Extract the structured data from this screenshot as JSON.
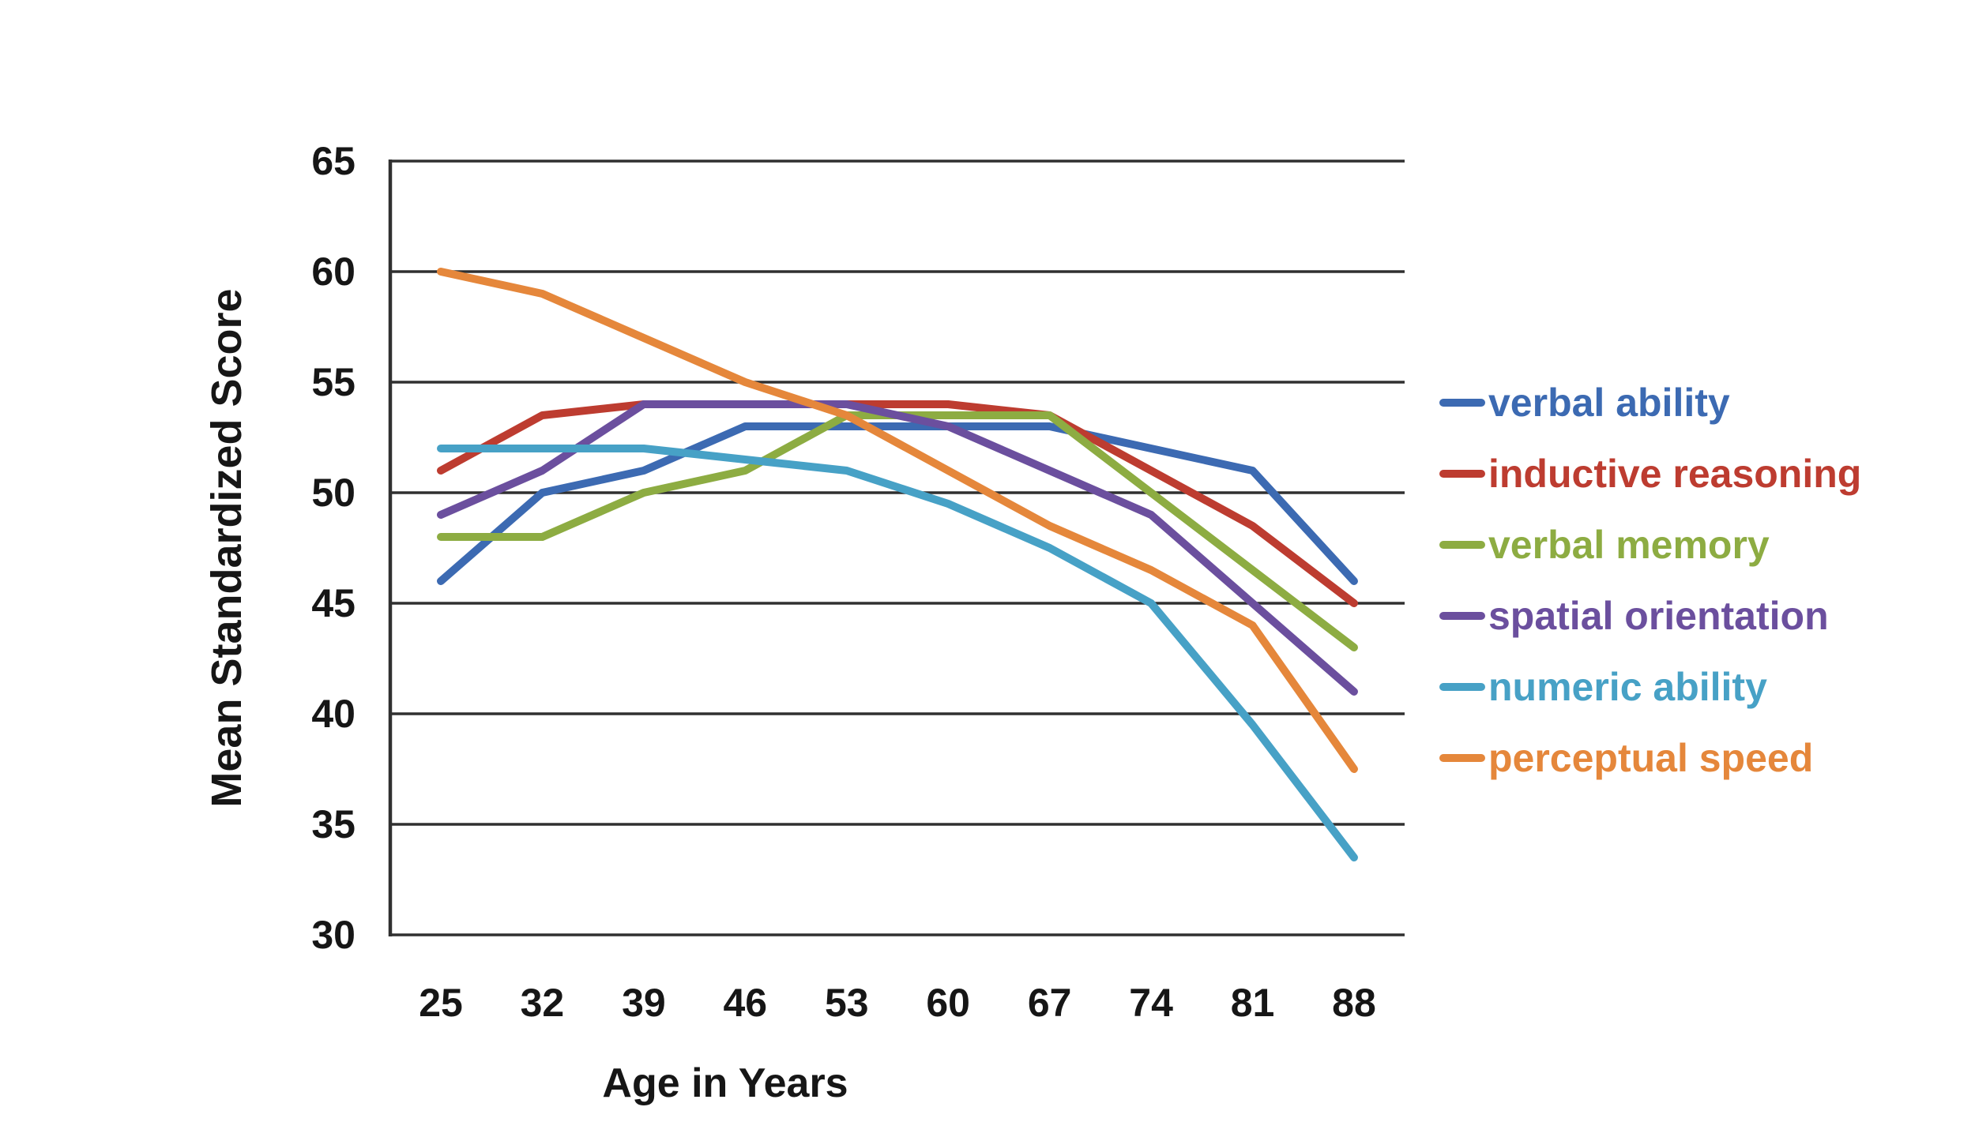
{
  "chart_data": {
    "type": "line",
    "title": "",
    "xlabel": "Age in Years",
    "ylabel": "Mean Standardized Score",
    "x_categories": [
      "25",
      "32",
      "39",
      "46",
      "53",
      "60",
      "67",
      "74",
      "81",
      "88"
    ],
    "y_ticks": [
      65,
      60,
      55,
      50,
      45,
      40,
      35,
      30
    ],
    "ylim": [
      30,
      65
    ],
    "grid": "horizontal-only",
    "legend_position": "right-middle",
    "axis_color": "#303030",
    "tick_text_color": "#161616",
    "series": [
      {
        "name": "verbal ability",
        "color": "#3c6ab2",
        "values": [
          46,
          50,
          51,
          53,
          53,
          53,
          53,
          52,
          51,
          46
        ]
      },
      {
        "name": "inductive reasoning",
        "color": "#bd3c30",
        "values": [
          51,
          53.5,
          54,
          54,
          54,
          54,
          53.5,
          51,
          48.5,
          45
        ]
      },
      {
        "name": "verbal memory",
        "color": "#8dac42",
        "values": [
          48,
          48,
          50,
          51,
          53.5,
          53.5,
          53.5,
          50,
          46.5,
          43
        ]
      },
      {
        "name": "spatial orientation",
        "color": "#6b4f9e",
        "values": [
          49,
          51,
          54,
          54,
          54,
          53,
          51,
          49,
          45,
          41
        ]
      },
      {
        "name": "numeric ability",
        "color": "#47a1c6",
        "values": [
          52,
          52,
          52,
          51.5,
          51,
          49.5,
          47.5,
          45,
          39.5,
          33.5
        ]
      },
      {
        "name": "perceptual speed",
        "color": "#e5873b",
        "values": [
          60,
          59,
          57,
          55,
          53.5,
          51,
          48.5,
          46.5,
          44,
          37.5
        ]
      }
    ]
  }
}
